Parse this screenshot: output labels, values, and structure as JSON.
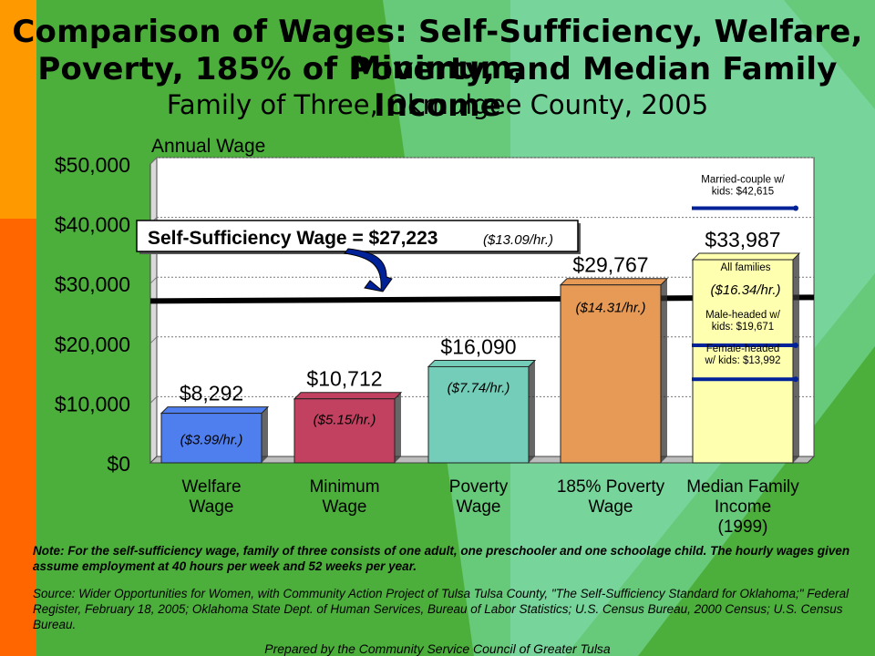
{
  "colors": {
    "background_green": "#4caf3c",
    "left_strip_orange": "#ff9900",
    "left_strip_red": "#ff6600",
    "plot_bg": "#ffffff",
    "bar_welfare": "#4f7fef",
    "bar_minimum": "#c24060",
    "bar_poverty": "#74cdb8",
    "bar_185": "#e69a55",
    "bar_median": "#ffffb0",
    "median_lines": "#002299"
  },
  "title": {
    "line1": "Comparison of Wages: Self-Sufficiency, Welfare, Minimum,",
    "line2": "Poverty, 185% of Poverty, and Median Family Income",
    "subtitle": "Family of Three, Okmulgee County, 2005"
  },
  "chart_data": {
    "type": "bar",
    "ylabel": "Annual Wage",
    "ylim": [
      0,
      50000
    ],
    "yticks": [
      "$0",
      "$10,000",
      "$20,000",
      "$30,000",
      "$40,000",
      "$50,000"
    ],
    "categories": [
      {
        "line1": "Welfare",
        "line2": "Wage",
        "line3": ""
      },
      {
        "line1": "Minimum",
        "line2": "Wage",
        "line3": ""
      },
      {
        "line1": "Poverty",
        "line2": "Wage",
        "line3": ""
      },
      {
        "line1": "185% Poverty",
        "line2": "Wage",
        "line3": ""
      },
      {
        "line1": "Median Family",
        "line2": "Income",
        "line3": "(1999)"
      }
    ],
    "values": [
      8292,
      10712,
      16090,
      29767,
      33987
    ],
    "value_labels": [
      "$8,292",
      "$10,712",
      "$16,090",
      "$29,767",
      "$33,987"
    ],
    "hourly_labels": [
      "($3.99/hr.)",
      "($5.15/hr.)",
      "($7.74/hr.)",
      "($14.31/hr.)",
      "($16.34/hr.)"
    ],
    "reference_line": {
      "value": 27223,
      "label": "Self-Sufficiency Wage = $27,223",
      "hourly": "($13.09/hr.)"
    },
    "median_breakdown": [
      {
        "label": "Married-couple w/ kids: $42,615",
        "line1": "Married-couple w/",
        "line2": "kids: $42,615",
        "value": 42615
      },
      {
        "label": "All families",
        "line1": "All families",
        "line2": "",
        "value": 33987
      },
      {
        "label": "Male-headed w/ kids: $19,671",
        "line1": "Male-headed w/",
        "line2": "kids: $19,671",
        "value": 19671
      },
      {
        "label": "Female-headed w/ kids: $13,992",
        "line1": "Female-headed",
        "line2": "w/ kids: $13,992",
        "value": 13992
      }
    ],
    "grid": true
  },
  "notes": {
    "note": "Note:  For the self-sufficiency wage, family of three consists of one adult, one preschooler and one schoolage child. The hourly wages given assume employment at 40 hours per week and 52 weeks per year.",
    "source": "Source:  Wider Opportunities for Women, with Community Action Project of Tulsa Tulsa County, \"The Self-Sufficiency Standard for Oklahoma;\" Federal Register, February 18, 2005; Oklahoma State Dept. of Human Services, Bureau of Labor Statistics; U.S. Census Bureau, 2000 Census; U.S. Census Bureau.",
    "credit": "Prepared by the Community Service Council of Greater Tulsa"
  }
}
